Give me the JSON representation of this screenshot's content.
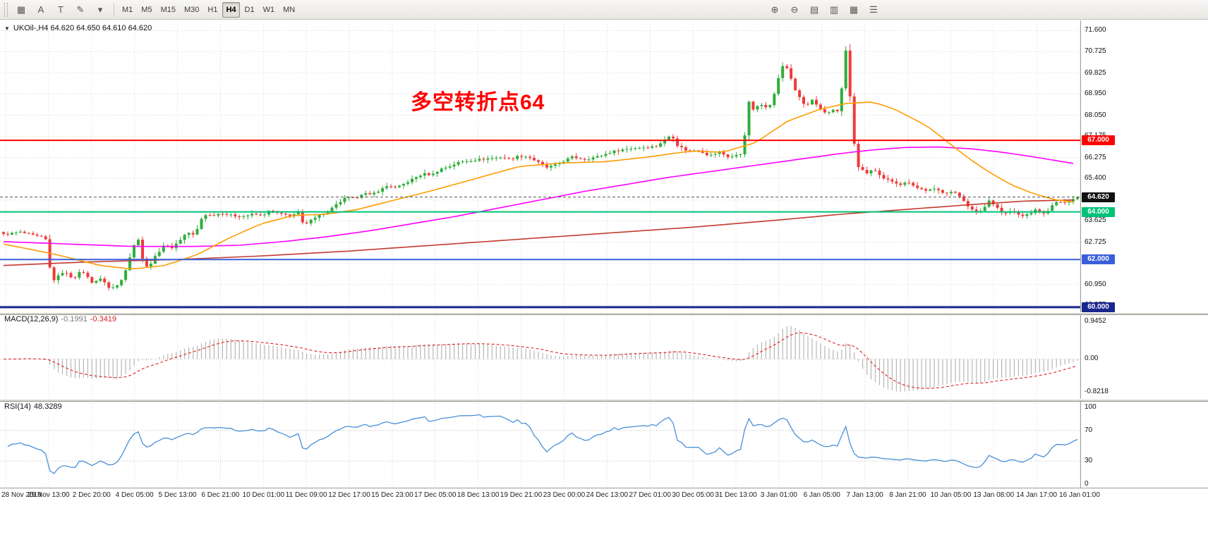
{
  "toolbar": {
    "left_icons": [
      {
        "name": "charts-grid-icon",
        "glyph": "▦"
      },
      {
        "name": "annotate-letter-icon",
        "glyph": "A"
      },
      {
        "name": "text-tool-icon",
        "glyph": "T"
      },
      {
        "name": "draw-tools-icon",
        "glyph": "✎"
      },
      {
        "name": "draw-tools-caret-icon",
        "glyph": "▾"
      }
    ],
    "timeframes": [
      "M1",
      "M5",
      "M15",
      "M30",
      "H1",
      "H4",
      "D1",
      "W1",
      "MN"
    ],
    "selected_timeframe": "H4",
    "right_icons": [
      {
        "name": "zoom-in-icon",
        "glyph": "⊕"
      },
      {
        "name": "zoom-out-icon",
        "glyph": "⊖"
      },
      {
        "name": "tile-horizontal-icon",
        "glyph": "▤"
      },
      {
        "name": "tile-vertical-icon",
        "glyph": "▥"
      },
      {
        "name": "tile-grid-icon",
        "glyph": "▦"
      },
      {
        "name": "window-list-icon",
        "glyph": "☰"
      }
    ]
  },
  "chart": {
    "ohlc_label": "UKOil-,H4 64.620 64.650 64.610 64.620",
    "annotation": {
      "text": "多空转折点64",
      "color": "#ff0000"
    },
    "current_price": 64.62,
    "price_axis": {
      "decimals": 3,
      "ticks": [
        71.6,
        70.725,
        69.825,
        68.95,
        68.05,
        67.175,
        66.275,
        65.4,
        64.5,
        63.625,
        62.725,
        61.85,
        60.95,
        60.075
      ]
    },
    "badges": [
      {
        "label": "64.620",
        "price": 64.62,
        "bg": "#111111"
      },
      {
        "label": "67.000",
        "price": 67.0,
        "bg": "#ff0000"
      },
      {
        "label": "64.000",
        "price": 64.0,
        "bg": "#00c278"
      },
      {
        "label": "62.000",
        "price": 62.0,
        "bg": "#3a5fd9"
      },
      {
        "label": "60.000",
        "price": 60.0,
        "bg": "#19278f"
      }
    ],
    "hlines": [
      {
        "price": 67.0,
        "color": "#ff0000",
        "width": 2
      },
      {
        "price": 64.0,
        "color": "#00c278",
        "width": 2
      },
      {
        "price": 62.0,
        "color": "#3a5fd9",
        "width": 2
      },
      {
        "price": 60.0,
        "color": "#19278f",
        "width": 3
      }
    ]
  },
  "macd_panel": {
    "name": "MACD(12,26,9)",
    "main_value": "-0.1991",
    "signal_value": "-0.3419",
    "max": 0.9452,
    "min": -0.8218,
    "ticks": [
      {
        "label": "0.9452",
        "value": 0.9452
      },
      {
        "label": "0.00",
        "value": 0
      },
      {
        "label": "-0.8218",
        "value": -0.8218
      }
    ]
  },
  "rsi_panel": {
    "name": "RSI(14)",
    "value": "48.3289",
    "levels": [
      70,
      30
    ],
    "ticks": [
      {
        "label": "100",
        "value": 100
      },
      {
        "label": "70",
        "value": 70
      },
      {
        "label": "30",
        "value": 30
      },
      {
        "label": "0",
        "value": 0
      }
    ]
  },
  "time_axis": {
    "labels": [
      "28 Nov 2019",
      "29 Nov 13:00",
      "2 Dec 20:00",
      "4 Dec 05:00",
      "5 Dec 13:00",
      "6 Dec 21:00",
      "10 Dec 01:00",
      "11 Dec 09:00",
      "12 Dec 17:00",
      "15 Dec 23:00",
      "17 Dec 05:00",
      "18 Dec 13:00",
      "19 Dec 21:00",
      "23 Dec 00:00",
      "24 Dec 13:00",
      "27 Dec 01:00",
      "30 Dec 05:00",
      "31 Dec 13:00",
      "3 Jan 01:00",
      "6 Jan 05:00",
      "7 Jan 13:00",
      "8 Jan 21:00",
      "10 Jan 05:00",
      "13 Jan 08:00",
      "14 Jan 17:00",
      "16 Jan 01:00"
    ]
  },
  "colors": {
    "up_candle": "#2fae3b",
    "down_candle": "#ee3b3b",
    "ma_fast": "#ff9c00",
    "ma_mid": "#ff00ff",
    "ma_slow": "#c23a2e",
    "macd_hist": "#b6b6b6",
    "macd_signal": "#e02020",
    "rsi_line": "#4a90d9",
    "grid": "#d9d9d9"
  },
  "chart_data": {
    "type": "candlestick",
    "symbol": "UKOil-",
    "timeframe": "H4",
    "ohlc": {
      "open": "64.620",
      "high": "64.650",
      "low": "64.610",
      "close": "64.620"
    },
    "bars": 256,
    "view_high": 71.85,
    "view_low": 59.85,
    "noise_amp": 0.07,
    "close_path": [
      [
        0.0,
        63.05
      ],
      [
        0.016,
        63.15
      ],
      [
        0.029,
        63.0
      ],
      [
        0.039,
        62.9
      ],
      [
        0.044,
        61.4
      ],
      [
        0.047,
        61.15
      ],
      [
        0.056,
        61.5
      ],
      [
        0.065,
        61.2
      ],
      [
        0.073,
        61.55
      ],
      [
        0.082,
        61.05
      ],
      [
        0.092,
        61.2
      ],
      [
        0.099,
        60.75
      ],
      [
        0.107,
        60.95
      ],
      [
        0.112,
        61.35
      ],
      [
        0.121,
        62.55
      ],
      [
        0.126,
        62.9
      ],
      [
        0.13,
        61.9
      ],
      [
        0.134,
        61.65
      ],
      [
        0.141,
        62.1
      ],
      [
        0.149,
        62.6
      ],
      [
        0.157,
        62.5
      ],
      [
        0.165,
        62.85
      ],
      [
        0.171,
        63.15
      ],
      [
        0.178,
        63.0
      ],
      [
        0.186,
        63.9
      ],
      [
        0.193,
        63.85
      ],
      [
        0.203,
        63.95
      ],
      [
        0.212,
        63.85
      ],
      [
        0.222,
        63.8
      ],
      [
        0.232,
        63.9
      ],
      [
        0.241,
        63.85
      ],
      [
        0.248,
        64.05
      ],
      [
        0.258,
        63.9
      ],
      [
        0.267,
        63.85
      ],
      [
        0.275,
        63.95
      ],
      [
        0.28,
        63.35
      ],
      [
        0.286,
        63.7
      ],
      [
        0.294,
        63.85
      ],
      [
        0.302,
        64.0
      ],
      [
        0.31,
        64.3
      ],
      [
        0.319,
        64.6
      ],
      [
        0.327,
        64.55
      ],
      [
        0.335,
        64.8
      ],
      [
        0.341,
        64.7
      ],
      [
        0.35,
        64.9
      ],
      [
        0.358,
        65.1
      ],
      [
        0.366,
        65.0
      ],
      [
        0.374,
        65.2
      ],
      [
        0.382,
        65.4
      ],
      [
        0.391,
        65.6
      ],
      [
        0.399,
        65.55
      ],
      [
        0.407,
        65.8
      ],
      [
        0.415,
        65.9
      ],
      [
        0.425,
        66.1
      ],
      [
        0.435,
        66.15
      ],
      [
        0.444,
        66.2
      ],
      [
        0.454,
        66.25
      ],
      [
        0.464,
        66.3
      ],
      [
        0.472,
        66.2
      ],
      [
        0.48,
        66.35
      ],
      [
        0.489,
        66.3
      ],
      [
        0.497,
        66.1
      ],
      [
        0.505,
        65.85
      ],
      [
        0.513,
        65.95
      ],
      [
        0.516,
        66.0
      ],
      [
        0.529,
        66.3
      ],
      [
        0.542,
        66.2
      ],
      [
        0.556,
        66.35
      ],
      [
        0.569,
        66.55
      ],
      [
        0.582,
        66.65
      ],
      [
        0.595,
        66.7
      ],
      [
        0.608,
        66.75
      ],
      [
        0.618,
        67.1
      ],
      [
        0.622,
        67.25
      ],
      [
        0.627,
        66.8
      ],
      [
        0.637,
        66.55
      ],
      [
        0.647,
        66.6
      ],
      [
        0.657,
        66.35
      ],
      [
        0.667,
        66.5
      ],
      [
        0.675,
        66.3
      ],
      [
        0.681,
        66.35
      ],
      [
        0.688,
        66.45
      ],
      [
        0.694,
        68.6
      ],
      [
        0.698,
        68.3
      ],
      [
        0.705,
        68.5
      ],
      [
        0.711,
        68.4
      ],
      [
        0.716,
        68.6
      ],
      [
        0.72,
        69.4
      ],
      [
        0.725,
        70.1
      ],
      [
        0.731,
        70.0
      ],
      [
        0.735,
        69.3
      ],
      [
        0.741,
        68.8
      ],
      [
        0.747,
        68.4
      ],
      [
        0.753,
        68.7
      ],
      [
        0.76,
        68.3
      ],
      [
        0.766,
        68.1
      ],
      [
        0.773,
        68.3
      ],
      [
        0.779,
        68.2
      ],
      [
        0.7835,
        71.3
      ],
      [
        0.787,
        69.0
      ],
      [
        0.79,
        68.6
      ],
      [
        0.7915,
        67.0
      ],
      [
        0.796,
        65.9
      ],
      [
        0.803,
        65.6
      ],
      [
        0.81,
        65.8
      ],
      [
        0.818,
        65.4
      ],
      [
        0.827,
        65.3
      ],
      [
        0.835,
        65.15
      ],
      [
        0.843,
        65.25
      ],
      [
        0.851,
        65.0
      ],
      [
        0.859,
        64.9
      ],
      [
        0.868,
        64.95
      ],
      [
        0.876,
        64.8
      ],
      [
        0.884,
        64.85
      ],
      [
        0.892,
        64.6
      ],
      [
        0.899,
        64.2
      ],
      [
        0.905,
        63.95
      ],
      [
        0.912,
        64.1
      ],
      [
        0.918,
        64.5
      ],
      [
        0.925,
        64.2
      ],
      [
        0.931,
        63.9
      ],
      [
        0.939,
        64.05
      ],
      [
        0.948,
        63.8
      ],
      [
        0.956,
        63.95
      ],
      [
        0.962,
        64.1
      ],
      [
        0.969,
        63.9
      ],
      [
        0.975,
        64.2
      ],
      [
        0.982,
        64.45
      ],
      [
        0.988,
        64.35
      ],
      [
        0.995,
        64.55
      ],
      [
        1.0,
        64.62
      ]
    ],
    "ma_fast": [
      [
        0,
        62.65
      ],
      [
        0.05,
        62.2
      ],
      [
        0.09,
        61.75
      ],
      [
        0.12,
        61.6
      ],
      [
        0.15,
        61.75
      ],
      [
        0.18,
        62.2
      ],
      [
        0.21,
        62.9
      ],
      [
        0.24,
        63.5
      ],
      [
        0.27,
        63.85
      ],
      [
        0.3,
        63.9
      ],
      [
        0.33,
        64.1
      ],
      [
        0.36,
        64.45
      ],
      [
        0.4,
        64.9
      ],
      [
        0.44,
        65.4
      ],
      [
        0.48,
        65.9
      ],
      [
        0.52,
        66.05
      ],
      [
        0.56,
        66.1
      ],
      [
        0.6,
        66.3
      ],
      [
        0.64,
        66.55
      ],
      [
        0.67,
        66.5
      ],
      [
        0.7,
        66.9
      ],
      [
        0.73,
        67.8
      ],
      [
        0.76,
        68.3
      ],
      [
        0.785,
        68.55
      ],
      [
        0.81,
        68.6
      ],
      [
        0.83,
        68.3
      ],
      [
        0.86,
        67.6
      ],
      [
        0.88,
        66.9
      ],
      [
        0.9,
        66.2
      ],
      [
        0.92,
        65.6
      ],
      [
        0.94,
        65.1
      ],
      [
        0.96,
        64.75
      ],
      [
        0.98,
        64.5
      ],
      [
        1.0,
        64.4
      ]
    ],
    "ma_mid": [
      [
        0,
        62.75
      ],
      [
        0.06,
        62.65
      ],
      [
        0.12,
        62.55
      ],
      [
        0.18,
        62.55
      ],
      [
        0.22,
        62.6
      ],
      [
        0.26,
        62.75
      ],
      [
        0.3,
        62.95
      ],
      [
        0.34,
        63.2
      ],
      [
        0.38,
        63.5
      ],
      [
        0.42,
        63.8
      ],
      [
        0.46,
        64.15
      ],
      [
        0.5,
        64.5
      ],
      [
        0.54,
        64.85
      ],
      [
        0.58,
        65.15
      ],
      [
        0.62,
        65.45
      ],
      [
        0.66,
        65.7
      ],
      [
        0.7,
        65.95
      ],
      [
        0.74,
        66.2
      ],
      [
        0.78,
        66.45
      ],
      [
        0.81,
        66.6
      ],
      [
        0.84,
        66.7
      ],
      [
        0.87,
        66.72
      ],
      [
        0.9,
        66.65
      ],
      [
        0.93,
        66.5
      ],
      [
        0.96,
        66.3
      ],
      [
        1.0,
        66.0
      ]
    ],
    "ma_slow": [
      [
        0,
        61.75
      ],
      [
        0.08,
        61.9
      ],
      [
        0.16,
        62.0
      ],
      [
        0.24,
        62.15
      ],
      [
        0.32,
        62.35
      ],
      [
        0.4,
        62.6
      ],
      [
        0.48,
        62.85
      ],
      [
        0.56,
        63.1
      ],
      [
        0.64,
        63.35
      ],
      [
        0.72,
        63.65
      ],
      [
        0.78,
        63.9
      ],
      [
        0.84,
        64.1
      ],
      [
        0.9,
        64.3
      ],
      [
        0.95,
        64.45
      ],
      [
        1.0,
        64.5
      ]
    ]
  }
}
